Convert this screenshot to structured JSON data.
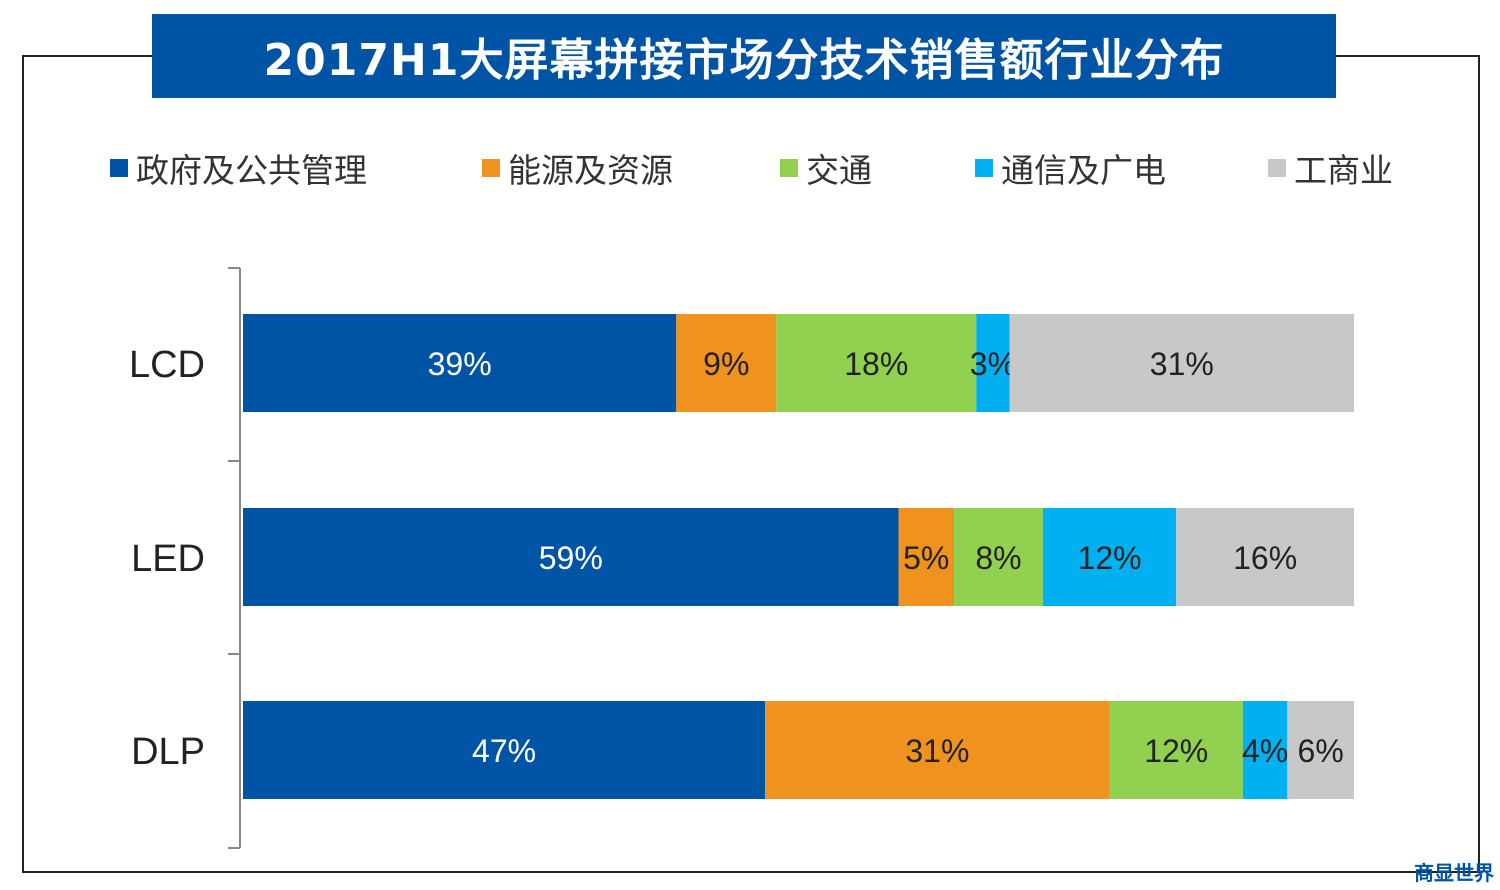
{
  "title": "2017H1大屏幕拼接市场分技术销售额行业分布",
  "watermark": {
    "part1": "商显",
    "part2": "世界"
  },
  "chart_data": {
    "type": "bar",
    "orientation": "horizontal",
    "stacked": true,
    "percent": true,
    "categories": [
      "LCD",
      "LED",
      "DLP"
    ],
    "series": [
      {
        "name": "政府及公共管理",
        "color": "#0054a6",
        "values": [
          39,
          59,
          47
        ]
      },
      {
        "name": "能源及资源",
        "color": "#f0921e",
        "values": [
          9,
          5,
          31
        ]
      },
      {
        "name": "交通",
        "color": "#92d050",
        "values": [
          18,
          8,
          12
        ]
      },
      {
        "name": "通信及广电",
        "color": "#00b0f0",
        "values": [
          3,
          12,
          4
        ]
      },
      {
        "name": "工商业",
        "color": "#c8c8c8",
        "values": [
          31,
          16,
          6
        ]
      }
    ],
    "legend_position": "top",
    "grid": false,
    "xlim": [
      0,
      100
    ]
  }
}
